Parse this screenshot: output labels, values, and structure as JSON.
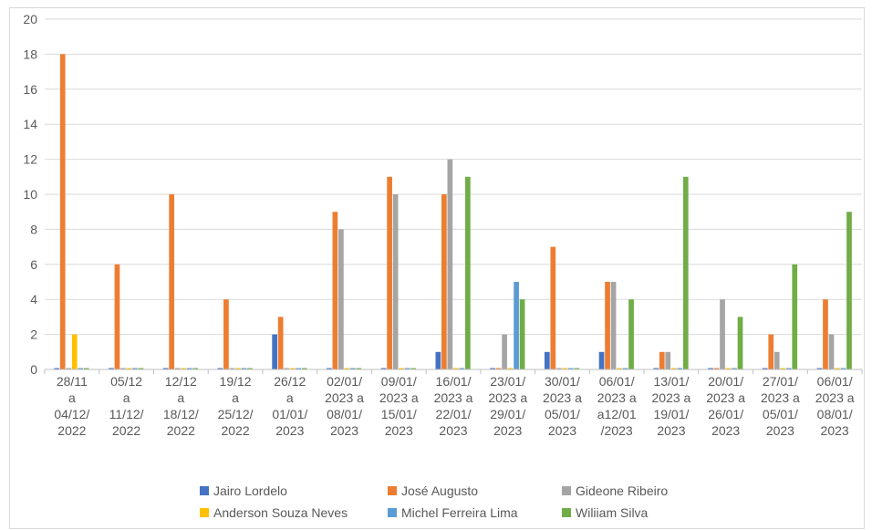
{
  "chart_data": {
    "type": "bar",
    "title": "",
    "xlabel": "",
    "ylabel": "",
    "ylim": [
      0,
      20
    ],
    "yticks": [
      "0",
      "2",
      "4",
      "6",
      "8",
      "10",
      "12",
      "14",
      "16",
      "18",
      "20"
    ],
    "grid": true,
    "legend_position": "bottom",
    "categories": [
      [
        "28/11",
        "a",
        "04/12/",
        "2022"
      ],
      [
        "05/12",
        "a",
        "11/12/",
        "2022"
      ],
      [
        "12/12",
        "a",
        "18/12/",
        "2022"
      ],
      [
        "19/12",
        "a",
        "25/12/",
        "2022"
      ],
      [
        "26/12",
        "a",
        "01/01/",
        "2023"
      ],
      [
        "02/01/",
        "2023 a",
        "08/01/",
        "2023"
      ],
      [
        "09/01/",
        "2023 a",
        "15/01/",
        "2023"
      ],
      [
        "16/01/",
        "2023 a",
        "22/01/",
        "2023"
      ],
      [
        "23/01/",
        "2023 a",
        "29/01/",
        "2023"
      ],
      [
        "30/01/",
        "2023 a",
        "05/01/",
        "2023"
      ],
      [
        "06/01/",
        "2023 a",
        "a12/01",
        "/2023"
      ],
      [
        "13/01/",
        "2023 a",
        "19/01/",
        "2023"
      ],
      [
        "20/01/",
        "2023 a",
        "26/01/",
        "2023"
      ],
      [
        "27/01/",
        "2023 a",
        "05/01/",
        "2023"
      ],
      [
        "06/01/",
        "2023 a",
        "08/01/",
        "2023"
      ]
    ],
    "series": [
      {
        "name": "Jairo Lordelo",
        "color": "#4472C4",
        "values": [
          0,
          0,
          0,
          0,
          2,
          0,
          0,
          1,
          0,
          1,
          1,
          0,
          0,
          0,
          0
        ]
      },
      {
        "name": "José Augusto",
        "color": "#ED7D31",
        "values": [
          18,
          6,
          10,
          4,
          3,
          9,
          11,
          10,
          0,
          7,
          5,
          1,
          0,
          2,
          4
        ]
      },
      {
        "name": "Gideone Ribeiro",
        "color": "#A5A5A5",
        "values": [
          0,
          0,
          0,
          0,
          0,
          8,
          10,
          12,
          2,
          0,
          5,
          1,
          4,
          1,
          2
        ]
      },
      {
        "name": "Anderson Souza Neves",
        "color": "#FFC000",
        "values": [
          2,
          0,
          0,
          0,
          0,
          0,
          0,
          0,
          0,
          0,
          0,
          0,
          0,
          0,
          0
        ]
      },
      {
        "name": "Michel Ferreira Lima",
        "color": "#5B9BD5",
        "values": [
          0,
          0,
          0,
          0,
          0,
          0,
          0,
          0,
          5,
          0,
          0,
          0,
          0,
          0,
          0
        ]
      },
      {
        "name": "Wiliiam Silva",
        "color": "#70AD47",
        "values": [
          0,
          0,
          0,
          0,
          0,
          0,
          0,
          11,
          4,
          0,
          4,
          11,
          3,
          6,
          9
        ]
      }
    ]
  }
}
